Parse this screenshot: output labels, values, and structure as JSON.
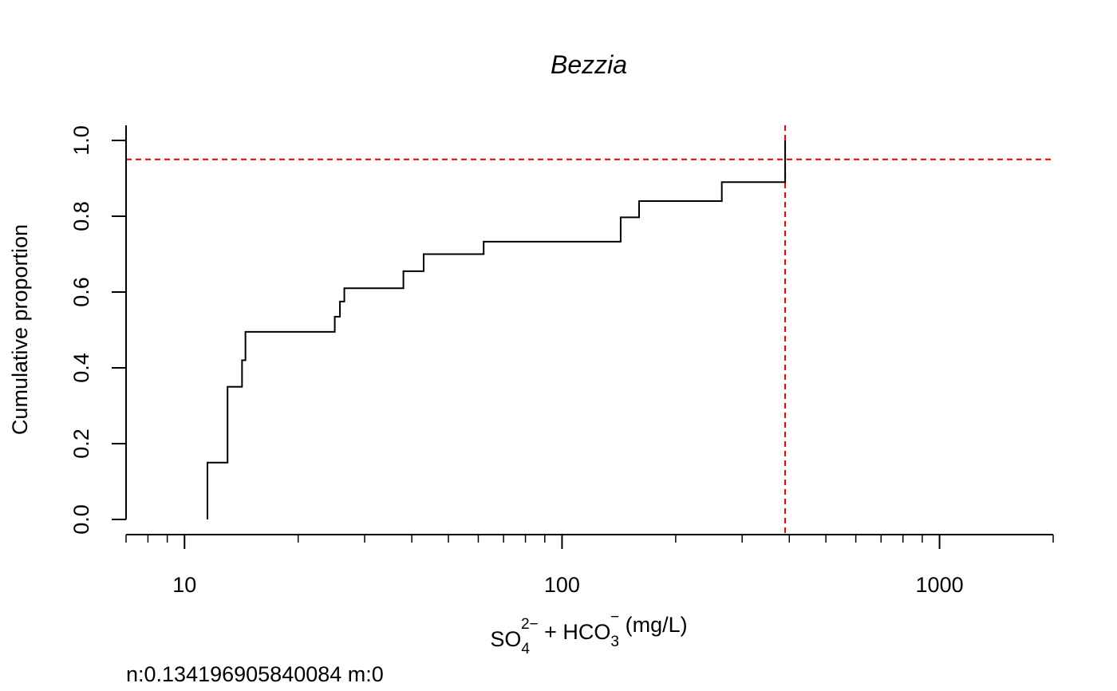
{
  "chart_data": {
    "type": "line",
    "title": "Bezzia",
    "xlabel": {
      "parts": [
        {
          "text": "SO",
          "style": "normal"
        },
        {
          "text": "4",
          "style": "sub"
        },
        {
          "text": "2−",
          "style": "sup"
        },
        {
          "text": " + HCO",
          "style": "normal"
        },
        {
          "text": "3",
          "style": "sub"
        },
        {
          "text": "−",
          "style": "sup"
        },
        {
          "text": " (mg/L)",
          "style": "normal"
        }
      ]
    },
    "ylabel": "Cumulative proportion",
    "x_scale": "log",
    "xlim": [
      7,
      2000
    ],
    "ylim": [
      0,
      1
    ],
    "x_major_ticks": [
      {
        "value": 10,
        "label": "10"
      },
      {
        "value": 100,
        "label": "100"
      },
      {
        "value": 1000,
        "label": "1000"
      }
    ],
    "y_ticks": [
      {
        "value": 0.0,
        "label": "0.0"
      },
      {
        "value": 0.2,
        "label": "0.2"
      },
      {
        "value": 0.4,
        "label": "0.4"
      },
      {
        "value": 0.6,
        "label": "0.6"
      },
      {
        "value": 0.8,
        "label": "0.8"
      },
      {
        "value": 1.0,
        "label": "1.0"
      }
    ],
    "series": [
      {
        "color": "#000000",
        "step": true,
        "points": [
          {
            "x": 11.5,
            "y": 0.0
          },
          {
            "x": 11.5,
            "y": 0.15
          },
          {
            "x": 13.0,
            "y": 0.35
          },
          {
            "x": 14.2,
            "y": 0.42
          },
          {
            "x": 14.5,
            "y": 0.495
          },
          {
            "x": 25.0,
            "y": 0.535
          },
          {
            "x": 25.8,
            "y": 0.575
          },
          {
            "x": 26.5,
            "y": 0.61
          },
          {
            "x": 38.0,
            "y": 0.655
          },
          {
            "x": 43.0,
            "y": 0.7
          },
          {
            "x": 62.0,
            "y": 0.733
          },
          {
            "x": 143.0,
            "y": 0.797
          },
          {
            "x": 160.0,
            "y": 0.84
          },
          {
            "x": 265.0,
            "y": 0.89
          },
          {
            "x": 390.0,
            "y": 1.0
          }
        ]
      }
    ],
    "reference_lines": [
      {
        "orientation": "horizontal",
        "value": 0.95,
        "color": "#dd0000",
        "style": "dashed"
      },
      {
        "orientation": "vertical",
        "value": 390,
        "color": "#dd0000",
        "style": "dashed"
      }
    ],
    "grid": false,
    "annotation": "n:0.134196905840084 m:0"
  }
}
